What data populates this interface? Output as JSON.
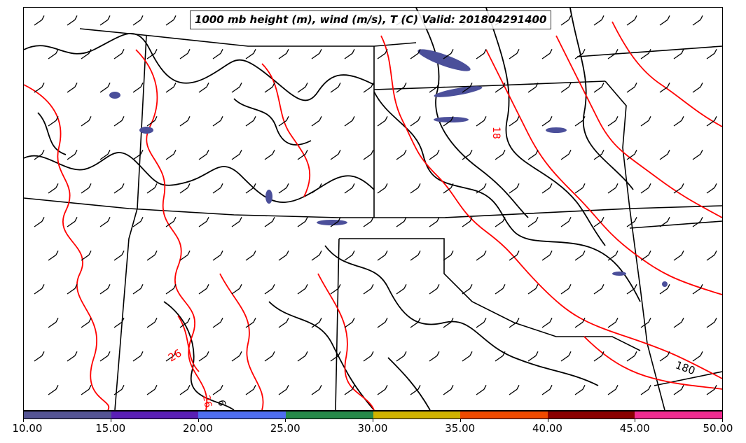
{
  "title": "1000 mb height (m), wind (m/s), T (C) Valid: 201804291400",
  "contour_labels": {
    "height_label": "180",
    "temp_label_a": "18",
    "temp_label_b": "26",
    "temp_label_c": "26",
    "height_label_b": "6"
  },
  "colors": {
    "height_contour": "#000000",
    "temp_contour": "#ff0000",
    "wind_shading": "#4b4f9a",
    "state_borders": "#000000"
  },
  "colorbar": {
    "segments": [
      {
        "range": "10-15",
        "color": "#545493"
      },
      {
        "range": "15-20",
        "color": "#5a1fb5"
      },
      {
        "range": "20-25",
        "color": "#4f6ef0"
      },
      {
        "range": "25-30",
        "color": "#278a4a"
      },
      {
        "range": "30-35",
        "color": "#cfb300"
      },
      {
        "range": "35-40",
        "color": "#f04a00"
      },
      {
        "range": "40-45",
        "color": "#8a0000"
      },
      {
        "range": "45-50",
        "color": "#f02b90"
      }
    ],
    "tick_labels": [
      "10.00",
      "15.00",
      "20.00",
      "25.00",
      "30.00",
      "35.00",
      "40.00",
      "45.00",
      "50.00"
    ]
  }
}
